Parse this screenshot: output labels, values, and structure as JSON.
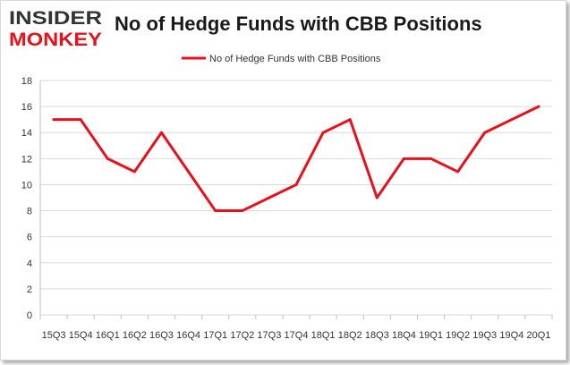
{
  "header": {
    "logo_line1": "INSIDER",
    "logo_line2": "MONKEY",
    "title": "No of Hedge Funds with CBB Positions"
  },
  "colors": {
    "series": "#e8101a",
    "grid": "#d9d9d9",
    "logo_dark": "#333333",
    "logo_red": "#e8101a"
  },
  "chart_data": {
    "type": "line",
    "title": "No of Hedge Funds with CBB Positions",
    "xlabel": "",
    "ylabel": "",
    "ylim": [
      0,
      18
    ],
    "yticks": [
      0,
      2,
      4,
      6,
      8,
      10,
      12,
      14,
      16,
      18
    ],
    "grid": true,
    "legend_position": "top-center",
    "categories": [
      "15Q3",
      "15Q4",
      "16Q1",
      "16Q2",
      "16Q3",
      "16Q4",
      "17Q1",
      "17Q2",
      "17Q3",
      "17Q4",
      "18Q1",
      "18Q2",
      "18Q3",
      "18Q4",
      "19Q1",
      "19Q2",
      "19Q3",
      "19Q4",
      "20Q1"
    ],
    "series": [
      {
        "name": "No of Hedge Funds with CBB Positions",
        "values": [
          15,
          15,
          12,
          11,
          14,
          11,
          8,
          8,
          9,
          10,
          14,
          15,
          9,
          12,
          12,
          11,
          14,
          15,
          16
        ]
      }
    ]
  }
}
